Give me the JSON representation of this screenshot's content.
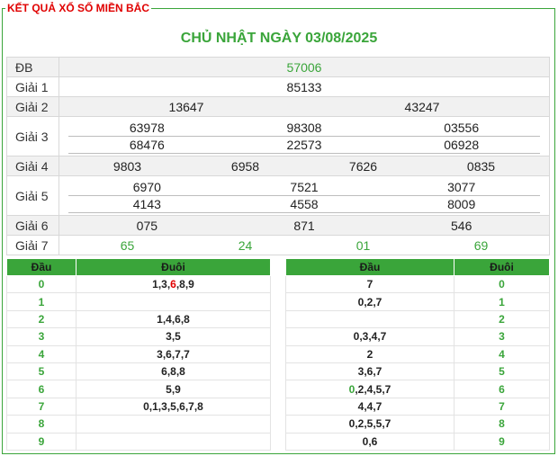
{
  "header": {
    "frame_title": "KẾT QUẢ XỔ SỐ MIỀN BẮC",
    "date_title": "CHỦ NHẬT NGÀY 03/08/2025"
  },
  "colors": {
    "accent": "#3aa53a",
    "title_red": "#e00000"
  },
  "results": {
    "db": {
      "label": "ĐB",
      "values": [
        "57006"
      ]
    },
    "g1": {
      "label": "Giải 1",
      "values": [
        "85133"
      ]
    },
    "g2": {
      "label": "Giải 2",
      "values": [
        "13647",
        "43247"
      ]
    },
    "g3": {
      "label": "Giải 3",
      "rows": [
        [
          "63978",
          "98308",
          "03556"
        ],
        [
          "68476",
          "22573",
          "06928"
        ]
      ]
    },
    "g4": {
      "label": "Giải 4",
      "values": [
        "9803",
        "6958",
        "7626",
        "0835"
      ]
    },
    "g5": {
      "label": "Giải 5",
      "rows": [
        [
          "6970",
          "7521",
          "3077"
        ],
        [
          "4143",
          "4558",
          "8009"
        ]
      ]
    },
    "g6": {
      "label": "Giải 6",
      "values": [
        "075",
        "871",
        "546"
      ]
    },
    "g7": {
      "label": "Giải 7",
      "values": [
        "65",
        "24",
        "01",
        "69"
      ]
    }
  },
  "loto_left": {
    "headers": [
      "Đầu",
      "Đuôi"
    ],
    "rows": [
      {
        "digit": "0",
        "value_parts": [
          "1,3,",
          "6",
          ",8,9"
        ]
      },
      {
        "digit": "1",
        "value_parts": [
          "",
          "",
          ""
        ]
      },
      {
        "digit": "2",
        "value_parts": [
          "1,4,6,8",
          "",
          ""
        ]
      },
      {
        "digit": "3",
        "value_parts": [
          "3,5",
          "",
          ""
        ]
      },
      {
        "digit": "4",
        "value_parts": [
          "3,6,7,7",
          "",
          ""
        ]
      },
      {
        "digit": "5",
        "value_parts": [
          "6,8,8",
          "",
          ""
        ]
      },
      {
        "digit": "6",
        "value_parts": [
          "5,9",
          "",
          ""
        ]
      },
      {
        "digit": "7",
        "value_parts": [
          "0,1,3,5,6,7,8",
          "",
          ""
        ]
      },
      {
        "digit": "8",
        "value_parts": [
          "",
          "",
          ""
        ]
      },
      {
        "digit": "9",
        "value_parts": [
          "",
          "",
          ""
        ]
      }
    ]
  },
  "loto_right": {
    "headers": [
      "Đầu",
      "Đuôi"
    ],
    "rows": [
      {
        "value_parts": [
          "",
          "7"
        ],
        "digit": "0"
      },
      {
        "value_parts": [
          "",
          "0,2,7"
        ],
        "digit": "1"
      },
      {
        "value_parts": [
          "",
          ""
        ],
        "digit": "2"
      },
      {
        "value_parts": [
          "",
          "0,3,4,7"
        ],
        "digit": "3"
      },
      {
        "value_parts": [
          "",
          "2"
        ],
        "digit": "4"
      },
      {
        "value_parts": [
          "",
          "3,6,7"
        ],
        "digit": "5"
      },
      {
        "value_parts": [
          "0",
          ",2,4,5,7"
        ],
        "digit": "6"
      },
      {
        "value_parts": [
          "",
          "4,4,7"
        ],
        "digit": "7"
      },
      {
        "value_parts": [
          "",
          "0,2,5,5,7"
        ],
        "digit": "8"
      },
      {
        "value_parts": [
          "",
          "0,6"
        ],
        "digit": "9"
      }
    ]
  }
}
